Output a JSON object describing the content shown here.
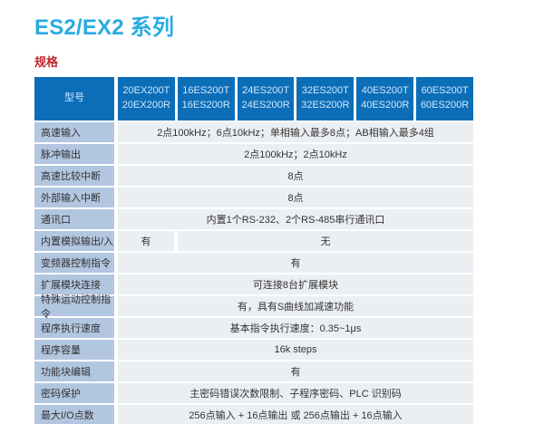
{
  "page": {
    "title": "ES2/EX2 系列",
    "section": "规格"
  },
  "colors": {
    "title_text": "#29ABE2",
    "section_text": "#C1272D",
    "header_bg": "#0D6EB8",
    "header_text": "#CDE8FA",
    "label_cell_bg": "#B2C6E0",
    "value_cell_bg": "#ECEFF2",
    "body_text": "#333333"
  },
  "table": {
    "header": {
      "label": "型号",
      "columns": [
        {
          "line1": "20EX200T",
          "line2": "20EX200R"
        },
        {
          "line1": "16ES200T",
          "line2": "16ES200R"
        },
        {
          "line1": "24ES200T",
          "line2": "24ES200R"
        },
        {
          "line1": "32ES200T",
          "line2": "32ES200R"
        },
        {
          "line1": "40ES200T",
          "line2": "40ES200R"
        },
        {
          "line1": "60ES200T",
          "line2": "60ES200R"
        }
      ]
    },
    "rows": [
      {
        "label": "高速输入",
        "value": "2点100kHz；6点10kHz；单相输入最多8点；AB相输入最多4组"
      },
      {
        "label": "脉冲输出",
        "value": "2点100kHz；2点10kHz"
      },
      {
        "label": "高速比较中断",
        "value": "8点"
      },
      {
        "label": "外部输入中断",
        "value": "8点"
      },
      {
        "label": "通讯口",
        "value": "内置1个RS-232、2个RS-485串行通讯口"
      },
      {
        "label": "内置模拟输出/入",
        "value_col1": "有",
        "value_rest": "无"
      },
      {
        "label": "变频器控制指令",
        "value": "有"
      },
      {
        "label": "扩展模块连接",
        "value": "可连接8台扩展模块"
      },
      {
        "label": "特殊运动控制指令",
        "value": "有，具有S曲线加减速功能"
      },
      {
        "label": "程序执行速度",
        "value": "基本指令执行速度：0.35~1μs"
      },
      {
        "label": "程序容量",
        "value": "16k steps"
      },
      {
        "label": "功能块编辑",
        "value": "有"
      },
      {
        "label": "密码保护",
        "value": "主密码错误次数限制、子程序密码、PLC 识别码"
      },
      {
        "label": "最大I/O点数",
        "value": "256点输入 + 16点输出  或 256点输出 + 16点输入"
      }
    ]
  }
}
